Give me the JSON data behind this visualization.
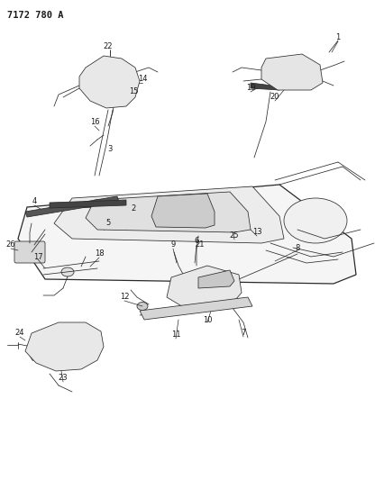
{
  "background_color": "#ffffff",
  "diagram_id": "7172 780 A",
  "line_color": "#2a2a2a",
  "text_color": "#1a1a1a",
  "label_fontsize": 6.0,
  "lw_thin": 0.55,
  "lw_med": 0.9,
  "lw_thick": 1.3
}
